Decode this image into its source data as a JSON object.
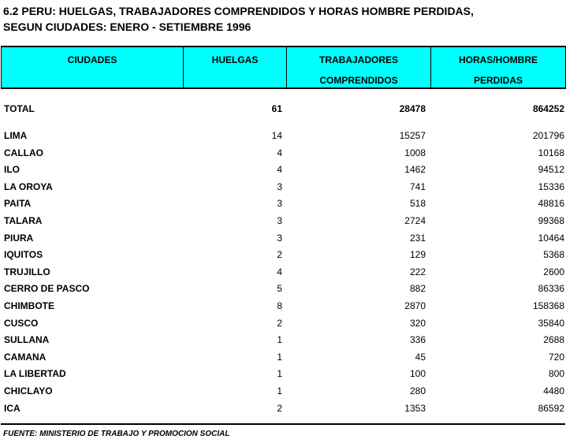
{
  "title": {
    "line1": "6.2  PERU: HUELGAS, TRABAJADORES COMPRENDIDOS Y HORAS HOMBRE PERDIDAS,",
    "line2": "SEGUN CIUDADES: ENERO - SETIEMBRE 1996"
  },
  "colors": {
    "header_bg": "#00ffff"
  },
  "columns": [
    {
      "l1": "CIUDADES",
      "l2": ""
    },
    {
      "l1": "HUELGAS",
      "l2": ""
    },
    {
      "l1": "TRABAJADORES",
      "l2": "COMPRENDIDOS"
    },
    {
      "l1": "HORAS/HOMBRE",
      "l2": "PERDIDAS"
    }
  ],
  "total": [
    "TOTAL",
    "61",
    "28478",
    "864252"
  ],
  "rows": [
    [
      "LIMA",
      "14",
      "15257",
      "201796"
    ],
    [
      "CALLAO",
      "4",
      "1008",
      "10168"
    ],
    [
      "ILO",
      "4",
      "1462",
      "94512"
    ],
    [
      "LA OROYA",
      "3",
      "741",
      "15336"
    ],
    [
      "PAITA",
      "3",
      "518",
      "48816"
    ],
    [
      "TALARA",
      "3",
      "2724",
      "99368"
    ],
    [
      "PIURA",
      "3",
      "231",
      "10464"
    ],
    [
      "IQUITOS",
      "2",
      "129",
      "5368"
    ],
    [
      "TRUJILLO",
      "4",
      "222",
      "2600"
    ],
    [
      "CERRO DE PASCO",
      "5",
      "882",
      "86336"
    ],
    [
      "CHIMBOTE",
      "8",
      "2870",
      "158368"
    ],
    [
      "CUSCO",
      "2",
      "320",
      "35840"
    ],
    [
      "SULLANA",
      "1",
      "336",
      "2688"
    ],
    [
      "CAMANA",
      "1",
      "45",
      "720"
    ],
    [
      "LA LIBERTAD",
      "1",
      "100",
      "800"
    ],
    [
      "CHICLAYO",
      "1",
      "280",
      "4480"
    ],
    [
      "ICA",
      "2",
      "1353",
      "86592"
    ]
  ],
  "footer": "FUENTE: MINISTERIO DE TRABAJO Y PROMOCION SOCIAL"
}
